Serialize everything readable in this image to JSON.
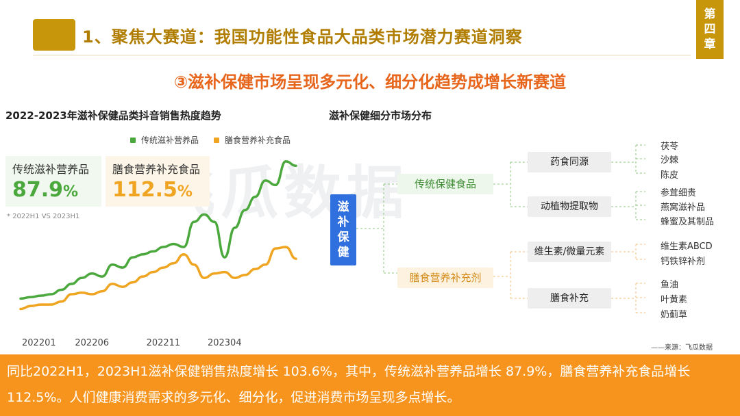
{
  "header": {
    "title": "1、聚焦大赛道：我国功能性食品大品类市场潜力赛道洞察",
    "chapter": [
      "第",
      "四",
      "章"
    ]
  },
  "subtitle": "③滋补保健市场呈现多元化、细分化趋势成增长新赛道",
  "left_title": "2022-2023年滋补保健品类抖音销售热度趋势",
  "right_title": "滋补保健细分市场分布",
  "watermark": "飞瓜数据",
  "kpis": {
    "traditional": {
      "label": "传统滋补营养品",
      "value": "87.9",
      "unit": "%"
    },
    "dietary": {
      "label": "膳食营养补充食品",
      "value": "112.5",
      "unit": "%"
    },
    "note": "* 2022H1 VS 2023H1"
  },
  "chart_data": {
    "type": "line",
    "x_ticks": [
      "202201",
      "202206",
      "202211",
      "202304"
    ],
    "series": [
      {
        "name": "传统滋补营养品",
        "color": "#4aa83c",
        "values": [
          10,
          11,
          12,
          13,
          16,
          20,
          24,
          27,
          25,
          33,
          31,
          38,
          40,
          42,
          45,
          47,
          45,
          62,
          67,
          62,
          38,
          58,
          70,
          79,
          90,
          87,
          103,
          100
        ]
      },
      {
        "name": "膳食营养补充食品",
        "color": "#f0a522",
        "values": [
          3,
          5,
          6,
          6,
          8,
          13,
          14,
          13,
          15,
          20,
          18,
          21,
          25,
          28,
          31,
          34,
          40,
          33,
          24,
          27,
          28,
          24,
          26,
          30,
          33,
          44,
          45,
          37
        ]
      }
    ],
    "ylim": [
      0,
      115
    ]
  },
  "tree": {
    "root": [
      "滋",
      "补",
      "保",
      "健"
    ],
    "categories": [
      {
        "label": "传统保健食品",
        "children": [
          {
            "label": "药食同源",
            "leaves": [
              "茯苓",
              "沙棘",
              "陈皮"
            ]
          },
          {
            "label": "动植物提取物",
            "leaves": [
              "参茸细贵",
              "燕窝滋补品",
              "蜂蜜及其制品"
            ]
          }
        ]
      },
      {
        "label": "膳食营养补充剂",
        "children": [
          {
            "label": "维生素/微量元素",
            "leaves": [
              "维生素ABCD",
              "钙铁锌补剂"
            ]
          },
          {
            "label": "膳食补充",
            "leaves": [
              "鱼油",
              "叶黄素",
              "奶蓟草"
            ]
          }
        ]
      }
    ]
  },
  "source": "——来源：飞瓜数据",
  "footer": "同比2022H1，2023H1滋补保健销售热度增长 103.6%，其中，传统滋补营养品增长 87.9%，膳食营养补充食品增长 112.5%。人们健康消费需求的多元化、细分化，促进消费市场呈现多点增长。"
}
